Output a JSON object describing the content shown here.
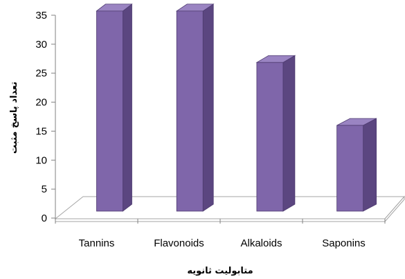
{
  "chart_data": {
    "type": "bar",
    "three_d": true,
    "categories": [
      "Tannins",
      "Flavonoids",
      "Alkaloids",
      "Saponins"
    ],
    "values": [
      35,
      35,
      26,
      15
    ],
    "xlabel": "متابولیت ثانویه",
    "ylabel": "تعداد پاسخ مثبت",
    "ylim": [
      0,
      35
    ],
    "yticks": [
      0,
      5,
      10,
      15,
      20,
      25,
      30,
      35
    ],
    "grid": false,
    "legend": "none",
    "colors": {
      "bar_front": "#7F66AA",
      "bar_side": "#5B4680",
      "bar_top": "#9A84C2",
      "bar_edge": "#4E3B70",
      "floor": "#FFFFFF",
      "floor_edge": "#A6A6A6",
      "axis": "#808080",
      "text": "#000000"
    }
  }
}
